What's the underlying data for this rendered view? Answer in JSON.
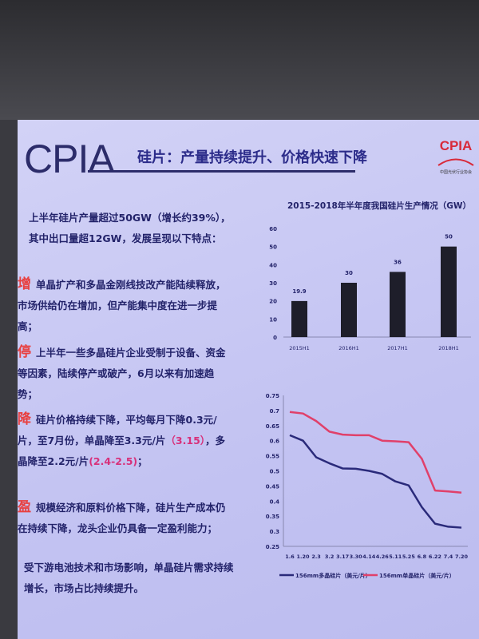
{
  "header": {
    "logo": "CPIA",
    "title": "硅片：产量持续提升、价格快速下降",
    "badge_logo": "CPIA",
    "badge_sub": "中国光伏行业协会"
  },
  "left": {
    "intro1": "上半年硅片产量超过50GW（增长约39%），",
    "intro2": "其中出口量超12GW，发展呈现以下特点：",
    "items": [
      {
        "key": "增",
        "text": "单晶扩产和多晶金刚线技改产能陆续释放，市场供给仍在增加，但产能集中度在进一步提高；"
      },
      {
        "key": "停",
        "text": "上半年一些多晶硅片企业受制于设备、资金等因素，陆续停产或破产，6月以来有加速趋势；"
      },
      {
        "key": "降",
        "text_a": "硅片价格持续下降，平均每月下降0.3元/片，至7月份，单晶降至3.3元/片",
        "hl1": "（3.15）",
        "text_b": "，多晶降至2.2元/片",
        "hl2": "(2.4-2.5)",
        "text_c": "；"
      },
      {
        "key": "盈",
        "text": "规模经济和原料价格下降，硅片生产成本仍在持续下降，龙头企业仍具备一定盈利能力；"
      }
    ],
    "outro": "受下游电池技术和市场影响，单晶硅片需求持续增长，市场占比持续提升。"
  },
  "chart_data": [
    {
      "type": "bar",
      "title": "2015-2018年半年度我国硅片生产情况（GW）",
      "categories": [
        "2015H1",
        "2016H1",
        "2017H1",
        "2018H1"
      ],
      "values": [
        19.9,
        30,
        36,
        50
      ],
      "value_labels": [
        "19.9",
        "30",
        "36",
        "50"
      ],
      "ylim": [
        0,
        60
      ],
      "yticks": [
        0,
        10,
        20,
        30,
        40,
        50,
        60
      ],
      "grid": false,
      "colors": {
        "bar": "#1e1e2a"
      }
    },
    {
      "type": "line",
      "categories": [
        "1.6",
        "1.20",
        "2.3",
        "3.2",
        "3.17",
        "3.30",
        "4.14",
        "4.26",
        "5.11",
        "5.25",
        "6.8",
        "6.22",
        "7.4",
        "7.20"
      ],
      "ylim": [
        0.25,
        0.75
      ],
      "yticks": [
        "0.25",
        "0.3",
        "0.35",
        "0.4",
        "0.45",
        "0.5",
        "0.55",
        "0.6",
        "0.65",
        "0.7",
        "0.75"
      ],
      "grid": false,
      "legend": "bottom",
      "series": [
        {
          "name": "156mm多晶硅片（美元/片）",
          "color": "#2a2a7a",
          "values": [
            0.618,
            0.6,
            0.545,
            0.525,
            0.508,
            0.507,
            0.5,
            0.49,
            0.465,
            0.452,
            0.38,
            0.325,
            0.315,
            0.312
          ]
        },
        {
          "name": "156mm单晶硅片（美元/片）",
          "color": "#e0406a",
          "values": [
            0.695,
            0.69,
            0.665,
            0.63,
            0.62,
            0.618,
            0.618,
            0.6,
            0.598,
            0.595,
            0.54,
            0.435,
            0.432,
            0.428
          ]
        }
      ]
    }
  ]
}
